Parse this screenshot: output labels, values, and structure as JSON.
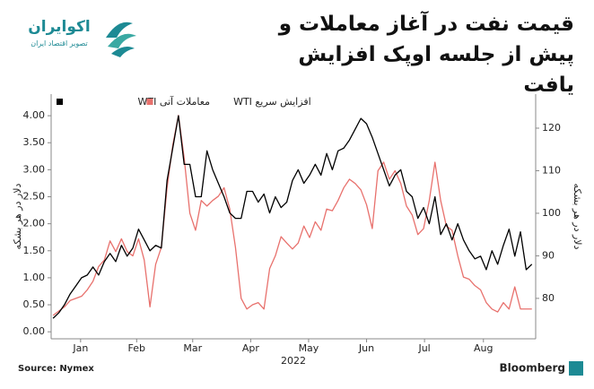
{
  "header": {
    "logo_name": "اکوایران",
    "logo_tagline": "تصویر اقتصاد ایران"
  },
  "chart_data": {
    "type": "line",
    "title": "قیمت نفت در آغاز معاملات و پیش از جلسه اوپک افزایش یافت",
    "ylabel": "دلار در هر بشکه",
    "y2label": "دلار در هر بشکه",
    "xlabel": "2022",
    "source": "Source: Nymex",
    "credit": "Bloomberg",
    "xlim": [
      0,
      255
    ],
    "xticks": [
      {
        "value": 15.5,
        "label": "Jan"
      },
      {
        "value": 45,
        "label": "Feb"
      },
      {
        "value": 74.5,
        "label": "Mar"
      },
      {
        "value": 105,
        "label": "Apr"
      },
      {
        "value": 135.5,
        "label": "May"
      },
      {
        "value": 166,
        "label": "Jun"
      },
      {
        "value": 196.5,
        "label": "Jul"
      },
      {
        "value": 227.5,
        "label": "Aug"
      }
    ],
    "ylim": [
      -0.13,
      4.4
    ],
    "yticks": [
      {
        "value": 0,
        "label": "0.00"
      },
      {
        "value": 0.5,
        "label": "0.50"
      },
      {
        "value": 1,
        "label": "1.00"
      },
      {
        "value": 1.5,
        "label": "1.50"
      },
      {
        "value": 2,
        "label": "2.00"
      },
      {
        "value": 2.5,
        "label": "2.50"
      },
      {
        "value": 3,
        "label": "3.00"
      },
      {
        "value": 3.5,
        "label": "3.50"
      },
      {
        "value": 4,
        "label": "4.00"
      }
    ],
    "y2lim": [
      70.5,
      128
    ],
    "y2ticks": [
      80,
      90,
      100,
      110,
      120
    ],
    "x": [
      1,
      4,
      7,
      10,
      13,
      16,
      19,
      22,
      25,
      28,
      31,
      34,
      37,
      40,
      43,
      46,
      49,
      52,
      55,
      58,
      61,
      64,
      67,
      70,
      73,
      76,
      79,
      82,
      85,
      88,
      91,
      94,
      97,
      100,
      103,
      106,
      109,
      112,
      115,
      118,
      121,
      124,
      127,
      130,
      133,
      136,
      139,
      142,
      145,
      148,
      151,
      154,
      157,
      160,
      163,
      166,
      169,
      172,
      175,
      178,
      181,
      184,
      187,
      190,
      193,
      196,
      199,
      202,
      205,
      208,
      211,
      214,
      217,
      220,
      223,
      226,
      229,
      232,
      235,
      238,
      241,
      244,
      247,
      250,
      253
    ],
    "series": [
      {
        "name": "معاملات آتی WTI",
        "color": "#000000",
        "values": [
          0.25,
          0.35,
          0.5,
          0.7,
          0.85,
          1.0,
          1.05,
          1.2,
          1.05,
          1.3,
          1.45,
          1.3,
          1.6,
          1.4,
          1.55,
          1.9,
          1.7,
          1.5,
          1.6,
          1.55,
          2.8,
          3.4,
          4.0,
          3.1,
          3.1,
          2.5,
          2.5,
          3.35,
          3.0,
          2.75,
          2.5,
          2.2,
          2.1,
          2.1,
          2.6,
          2.6,
          2.4,
          2.55,
          2.2,
          2.5,
          2.3,
          2.4,
          2.8,
          3.0,
          2.75,
          2.9,
          3.1,
          2.9,
          3.3,
          3.0,
          3.35,
          3.4,
          3.55,
          3.75,
          3.95,
          3.85,
          3.6,
          3.3,
          3.0,
          2.7,
          2.9,
          3.0,
          2.6,
          2.5,
          2.1,
          2.3,
          2.0,
          2.5,
          1.8,
          2.0,
          1.7,
          2.0,
          1.7,
          1.5,
          1.35,
          1.4,
          1.15,
          1.5,
          1.25,
          1.6,
          1.9,
          1.4,
          1.85,
          1.15,
          1.25
        ]
      },
      {
        "name": "افزایش سریع WTI",
        "color": "#e8716d",
        "axis": "y2",
        "values": [
          76,
          77,
          78,
          79.5,
          80,
          80.5,
          82,
          84,
          87.5,
          89,
          93.5,
          91,
          94,
          91,
          90,
          94,
          89,
          78,
          88,
          92,
          106,
          116,
          123,
          113,
          100,
          96,
          103,
          101.7,
          103,
          104,
          106,
          101,
          92,
          80,
          77.5,
          78.5,
          79,
          77.5,
          87,
          90,
          94.5,
          93,
          91.6,
          93,
          97,
          94.3,
          98,
          96,
          101,
          100.6,
          103,
          106,
          108,
          107,
          105.5,
          102,
          96.4,
          110,
          112,
          108,
          110,
          107,
          101.7,
          99.6,
          95,
          96.4,
          103,
          112,
          103,
          97,
          96,
          90,
          85,
          84.5,
          83,
          82,
          79,
          77.5,
          76.8,
          79,
          77.5,
          82.7,
          77.5,
          77.5,
          77.5
        ]
      }
    ]
  }
}
